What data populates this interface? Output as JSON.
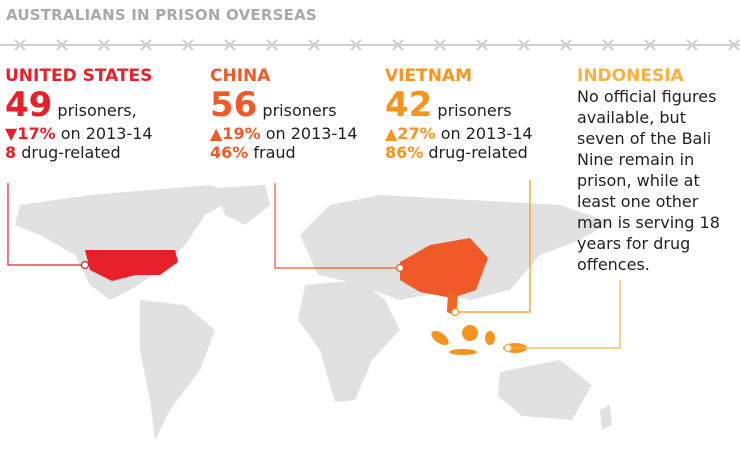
{
  "header": {
    "title": "AUSTRALIANS IN PRISON OVERSEAS"
  },
  "countries": [
    {
      "name": "UNITED STATES",
      "count": "49",
      "count_label": "prisoners,",
      "change": "▼17%",
      "change_label": "on 2013-14",
      "stat": "8",
      "stat_label": "drug-related"
    },
    {
      "name": "CHINA",
      "count": "56",
      "count_label": "prisoners",
      "change": "▲19%",
      "change_label": "on 2013-14",
      "stat": "46%",
      "stat_label": "fraud"
    },
    {
      "name": "VIETNAM",
      "count": "42",
      "count_label": "prisoners",
      "change": "▲27%",
      "change_label": "on 2013-14",
      "stat": "86%",
      "stat_label": "drug-related"
    },
    {
      "name": "INDONESIA",
      "lines": [
        "No official figures",
        "available, but",
        "seven of the Bali",
        "Nine remain in",
        "prison, while at",
        "least one other",
        "man is serving 18",
        "years for drug",
        "offences."
      ]
    }
  ]
}
